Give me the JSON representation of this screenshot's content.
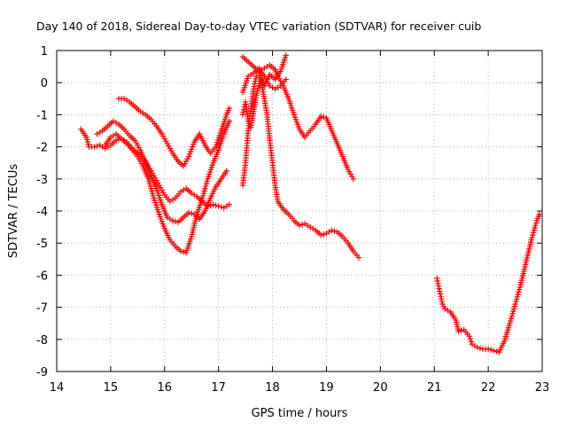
{
  "chart_data": {
    "type": "scatter",
    "title": "Day 140 of 2018, Sidereal Day-to-day VTEC variation (SDTVAR) for receiver cuib",
    "xlabel": "GPS time / hours",
    "ylabel": "SDTVAR / TECUs",
    "xlim": [
      14,
      23
    ],
    "ylim": [
      -9,
      1
    ],
    "xticks": [
      14,
      15,
      16,
      17,
      18,
      19,
      20,
      21,
      22,
      23
    ],
    "yticks": [
      1,
      0,
      -1,
      -2,
      -3,
      -4,
      -5,
      -6,
      -7,
      -8,
      -9
    ],
    "grid": true,
    "marker": "+",
    "series": [
      {
        "name": "track-a",
        "color": "#ff0000",
        "points": [
          [
            14.45,
            -1.45
          ],
          [
            14.55,
            -1.7
          ],
          [
            14.6,
            -2.0
          ],
          [
            14.7,
            -2.0
          ],
          [
            14.8,
            -1.95
          ],
          [
            14.9,
            -2.05
          ],
          [
            15.0,
            -1.95
          ],
          [
            15.1,
            -1.8
          ],
          [
            15.2,
            -1.75
          ],
          [
            15.3,
            -1.85
          ],
          [
            15.4,
            -2.05
          ],
          [
            15.5,
            -2.2
          ],
          [
            15.6,
            -2.35
          ],
          [
            15.7,
            -2.6
          ],
          [
            15.8,
            -2.9
          ],
          [
            15.9,
            -3.2
          ],
          [
            16.0,
            -3.5
          ],
          [
            16.1,
            -3.7
          ],
          [
            16.2,
            -3.6
          ],
          [
            16.3,
            -3.4
          ],
          [
            16.4,
            -3.3
          ],
          [
            16.5,
            -3.45
          ],
          [
            16.6,
            -3.55
          ],
          [
            16.7,
            -3.7
          ],
          [
            16.8,
            -3.85
          ],
          [
            16.9,
            -3.8
          ],
          [
            17.0,
            -3.85
          ],
          [
            17.1,
            -3.9
          ],
          [
            17.2,
            -3.8
          ]
        ]
      },
      {
        "name": "track-b",
        "color": "#ff0000",
        "points": [
          [
            14.75,
            -1.6
          ],
          [
            14.85,
            -1.5
          ],
          [
            14.95,
            -1.35
          ],
          [
            15.05,
            -1.2
          ],
          [
            15.15,
            -1.3
          ],
          [
            15.25,
            -1.45
          ],
          [
            15.35,
            -1.65
          ],
          [
            15.45,
            -1.8
          ],
          [
            15.55,
            -2.1
          ],
          [
            15.65,
            -2.5
          ],
          [
            15.75,
            -2.9
          ],
          [
            15.85,
            -3.3
          ],
          [
            15.95,
            -3.8
          ],
          [
            16.05,
            -4.2
          ],
          [
            16.15,
            -4.3
          ],
          [
            16.25,
            -4.35
          ],
          [
            16.35,
            -4.2
          ],
          [
            16.45,
            -4.05
          ],
          [
            16.55,
            -4.1
          ],
          [
            16.65,
            -4.25
          ],
          [
            16.75,
            -4.0
          ],
          [
            16.85,
            -3.6
          ],
          [
            16.95,
            -3.25
          ],
          [
            17.05,
            -3.0
          ],
          [
            17.15,
            -2.75
          ]
        ]
      },
      {
        "name": "track-c",
        "color": "#ff0000",
        "points": [
          [
            14.9,
            -1.95
          ],
          [
            15.0,
            -1.7
          ],
          [
            15.1,
            -1.6
          ],
          [
            15.2,
            -1.75
          ],
          [
            15.3,
            -1.9
          ],
          [
            15.4,
            -2.1
          ],
          [
            15.5,
            -2.3
          ],
          [
            15.6,
            -2.6
          ],
          [
            15.7,
            -3.0
          ],
          [
            15.8,
            -3.6
          ],
          [
            15.9,
            -4.1
          ],
          [
            16.0,
            -4.55
          ],
          [
            16.1,
            -4.9
          ],
          [
            16.2,
            -5.1
          ],
          [
            16.3,
            -5.25
          ],
          [
            16.4,
            -5.3
          ],
          [
            16.5,
            -4.8
          ],
          [
            16.6,
            -4.1
          ],
          [
            16.7,
            -3.6
          ],
          [
            16.8,
            -3.0
          ],
          [
            16.9,
            -2.5
          ],
          [
            17.0,
            -2.1
          ],
          [
            17.1,
            -1.6
          ],
          [
            17.2,
            -1.2
          ]
        ]
      },
      {
        "name": "track-d",
        "color": "#ff0000",
        "points": [
          [
            15.15,
            -0.5
          ],
          [
            15.25,
            -0.5
          ],
          [
            15.35,
            -0.6
          ],
          [
            15.45,
            -0.75
          ],
          [
            15.55,
            -0.9
          ],
          [
            15.65,
            -1.0
          ],
          [
            15.75,
            -1.15
          ],
          [
            15.85,
            -1.35
          ],
          [
            15.95,
            -1.6
          ],
          [
            16.05,
            -1.9
          ],
          [
            16.15,
            -2.2
          ],
          [
            16.25,
            -2.45
          ],
          [
            16.35,
            -2.6
          ],
          [
            16.45,
            -2.3
          ],
          [
            16.55,
            -1.85
          ],
          [
            16.65,
            -1.6
          ],
          [
            16.75,
            -1.95
          ],
          [
            16.85,
            -2.2
          ],
          [
            16.95,
            -2.0
          ],
          [
            17.05,
            -1.5
          ],
          [
            17.15,
            -1.0
          ],
          [
            17.2,
            -0.8
          ]
        ]
      },
      {
        "name": "track-e",
        "color": "#ff0000",
        "points": [
          [
            17.45,
            0.8
          ],
          [
            17.55,
            0.65
          ],
          [
            17.65,
            0.5
          ],
          [
            17.75,
            0.35
          ],
          [
            17.85,
            0.45
          ],
          [
            17.95,
            0.55
          ],
          [
            18.05,
            0.4
          ],
          [
            18.1,
            0.2
          ],
          [
            18.2,
            -0.1
          ],
          [
            18.3,
            -0.5
          ],
          [
            18.4,
            -1.0
          ],
          [
            18.5,
            -1.45
          ],
          [
            18.6,
            -1.7
          ],
          [
            18.7,
            -1.5
          ],
          [
            18.8,
            -1.3
          ],
          [
            18.9,
            -1.05
          ],
          [
            19.0,
            -1.1
          ],
          [
            19.1,
            -1.5
          ],
          [
            19.2,
            -1.9
          ],
          [
            19.3,
            -2.3
          ],
          [
            19.4,
            -2.7
          ],
          [
            19.5,
            -3.0
          ]
        ]
      },
      {
        "name": "track-f",
        "color": "#ff0000",
        "points": [
          [
            17.45,
            -3.2
          ],
          [
            17.5,
            -2.5
          ],
          [
            17.55,
            -1.5
          ],
          [
            17.6,
            -0.8
          ],
          [
            17.65,
            -0.2
          ],
          [
            17.7,
            0.2
          ],
          [
            17.75,
            0.3
          ],
          [
            17.8,
            0.0
          ],
          [
            17.85,
            -0.5
          ],
          [
            17.9,
            -1.0
          ],
          [
            17.95,
            -1.8
          ],
          [
            18.0,
            -2.5
          ],
          [
            18.05,
            -3.2
          ],
          [
            18.1,
            -3.7
          ],
          [
            18.2,
            -3.95
          ],
          [
            18.3,
            -4.1
          ],
          [
            18.4,
            -4.3
          ],
          [
            18.5,
            -4.45
          ],
          [
            18.6,
            -4.4
          ],
          [
            18.7,
            -4.5
          ],
          [
            18.8,
            -4.6
          ],
          [
            18.9,
            -4.75
          ],
          [
            19.0,
            -4.7
          ],
          [
            19.1,
            -4.6
          ],
          [
            19.2,
            -4.65
          ],
          [
            19.3,
            -4.8
          ],
          [
            19.4,
            -5.0
          ],
          [
            19.5,
            -5.25
          ],
          [
            19.6,
            -5.45
          ]
        ]
      },
      {
        "name": "track-g",
        "color": "#ff0000",
        "points": [
          [
            17.45,
            -1.0
          ],
          [
            17.5,
            -0.6
          ],
          [
            17.55,
            -1.2
          ],
          [
            17.6,
            -1.4
          ],
          [
            17.65,
            -0.9
          ],
          [
            17.7,
            -0.4
          ],
          [
            17.75,
            -0.1
          ],
          [
            17.8,
            0.1
          ],
          [
            17.85,
            -0.1
          ],
          [
            17.95,
            0.25
          ],
          [
            18.05,
            0.1
          ],
          [
            18.15,
            0.35
          ],
          [
            18.25,
            0.85
          ]
        ]
      },
      {
        "name": "track-h",
        "color": "#ff0000",
        "points": [
          [
            17.45,
            -0.3
          ],
          [
            17.55,
            0.2
          ],
          [
            17.65,
            0.3
          ],
          [
            17.75,
            0.45
          ],
          [
            17.85,
            0.2
          ],
          [
            17.95,
            -0.1
          ],
          [
            18.05,
            -0.2
          ],
          [
            18.15,
            -0.1
          ],
          [
            18.25,
            0.1
          ]
        ]
      },
      {
        "name": "track-i",
        "color": "#ff0000",
        "points": [
          [
            21.05,
            -6.1
          ],
          [
            21.1,
            -6.5
          ],
          [
            21.15,
            -6.9
          ],
          [
            21.2,
            -7.05
          ],
          [
            21.3,
            -7.15
          ],
          [
            21.4,
            -7.4
          ],
          [
            21.45,
            -7.75
          ],
          [
            21.55,
            -7.7
          ],
          [
            21.65,
            -7.9
          ],
          [
            21.7,
            -8.15
          ],
          [
            21.8,
            -8.25
          ],
          [
            21.9,
            -8.3
          ],
          [
            22.0,
            -8.3
          ],
          [
            22.1,
            -8.35
          ],
          [
            22.2,
            -8.4
          ],
          [
            22.3,
            -8.05
          ],
          [
            22.4,
            -7.5
          ],
          [
            22.5,
            -6.9
          ],
          [
            22.6,
            -6.3
          ],
          [
            22.7,
            -5.6
          ],
          [
            22.8,
            -4.9
          ],
          [
            22.9,
            -4.3
          ],
          [
            22.95,
            -4.1
          ]
        ]
      }
    ]
  }
}
